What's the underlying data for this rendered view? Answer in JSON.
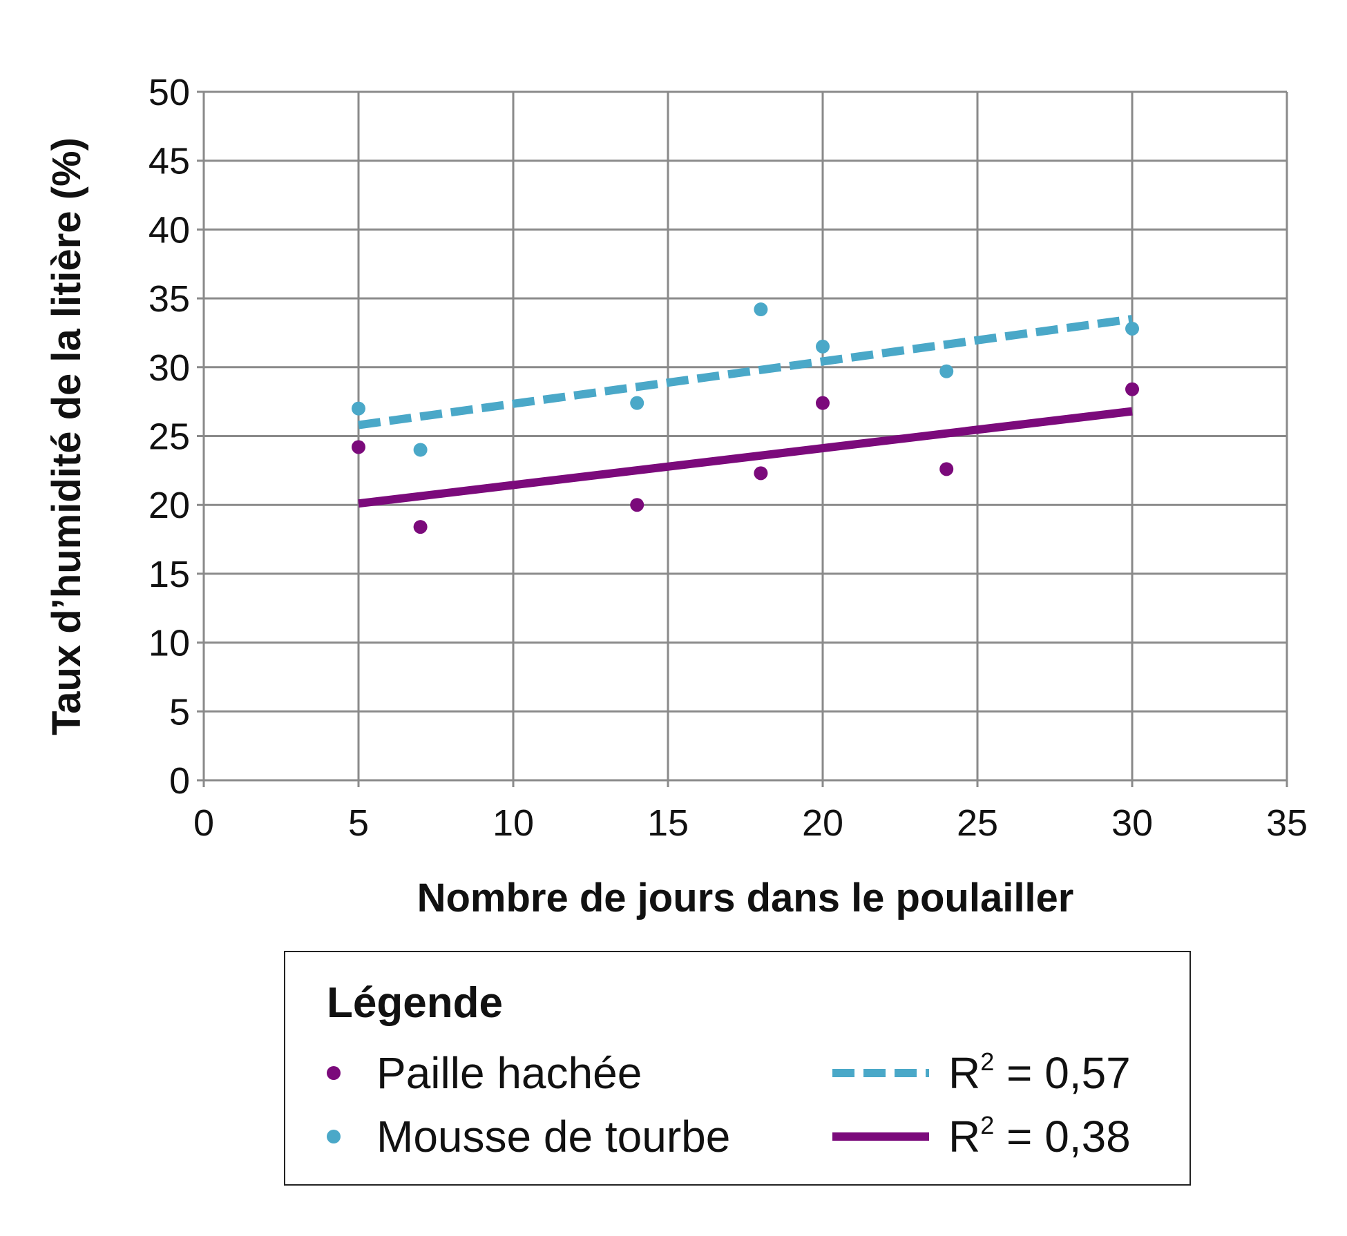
{
  "chart_data": {
    "type": "scatter",
    "xlabel": "Nombre de jours dans le poulailler",
    "ylabel": "Taux d’humidité de la litière (%)",
    "xlim": [
      0,
      35
    ],
    "ylim": [
      0,
      50
    ],
    "xticks": [
      "0",
      "5",
      "10",
      "15",
      "20",
      "25",
      "30",
      "35"
    ],
    "yticks": [
      "0",
      "5",
      "10",
      "15",
      "20",
      "25",
      "30",
      "35",
      "40",
      "45",
      "50"
    ],
    "grid": true,
    "series": [
      {
        "name": "Paille hachée",
        "color": "#7b0a7b",
        "points": [
          {
            "x": 5,
            "y": 24.2
          },
          {
            "x": 7,
            "y": 18.4
          },
          {
            "x": 14,
            "y": 20.0
          },
          {
            "x": 18,
            "y": 22.3
          },
          {
            "x": 20,
            "y": 27.4
          },
          {
            "x": 24,
            "y": 22.6
          },
          {
            "x": 30,
            "y": 28.4
          }
        ],
        "trendline": {
          "style": "solid",
          "from": {
            "x": 5,
            "y": 20.1
          },
          "to": {
            "x": 30,
            "y": 26.8
          },
          "label": "R² = 0,38"
        }
      },
      {
        "name": "Mousse de tourbe",
        "color": "#4aa8c8",
        "points": [
          {
            "x": 5,
            "y": 27.0
          },
          {
            "x": 7,
            "y": 24.0
          },
          {
            "x": 14,
            "y": 27.4
          },
          {
            "x": 18,
            "y": 34.2
          },
          {
            "x": 20,
            "y": 31.5
          },
          {
            "x": 24,
            "y": 29.7
          },
          {
            "x": 30,
            "y": 32.8
          }
        ],
        "trendline": {
          "style": "dashed",
          "from": {
            "x": 5,
            "y": 25.8
          },
          "to": {
            "x": 30,
            "y": 33.5
          },
          "label": "R² = 0,57"
        }
      }
    ]
  },
  "legend": {
    "title": "Légende",
    "placement": "bottom",
    "series_1": "Paille hachée",
    "series_2": "Mousse de tourbe",
    "r2_prefix": "R",
    "r2_sup": "2",
    "r2_peat": " = 0,57",
    "r2_straw": " = 0,38"
  },
  "colors": {
    "straw": "#7b0a7b",
    "peat": "#4aa8c8",
    "grid": "#8a8a8a"
  }
}
